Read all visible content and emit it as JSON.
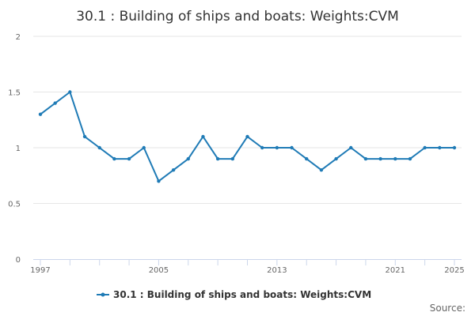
{
  "chart_data": {
    "type": "line",
    "title": "30.1 : Building of ships and boats: Weights:CVM",
    "xlabel": "",
    "ylabel": "",
    "x": [
      1997,
      1998,
      1999,
      2000,
      2001,
      2002,
      2003,
      2004,
      2005,
      2006,
      2007,
      2008,
      2009,
      2010,
      2011,
      2012,
      2013,
      2014,
      2015,
      2016,
      2017,
      2018,
      2019,
      2020,
      2021,
      2022,
      2023,
      2024,
      2025
    ],
    "series": [
      {
        "name": "30.1 : Building of ships and boats: Weights:CVM",
        "values": [
          1.3,
          1.4,
          1.5,
          1.1,
          1.0,
          0.9,
          0.9,
          1.0,
          0.7,
          0.8,
          0.9,
          1.1,
          0.9,
          0.9,
          1.1,
          1.0,
          1.0,
          1.0,
          0.9,
          0.8,
          0.9,
          1.0,
          0.9,
          0.9,
          0.9,
          0.9,
          1.0,
          1.0,
          1.0
        ],
        "color": "#1f7bb6"
      }
    ],
    "ylim": [
      0,
      2
    ],
    "yticks": [
      "0",
      "0.5",
      "1",
      "1.5",
      "2"
    ],
    "xtick_labels": [
      "1997",
      "2005",
      "2013",
      "2021",
      "2025"
    ],
    "xtick_label_years": [
      1997,
      2005,
      2013,
      2021,
      2025
    ],
    "grid": true,
    "legend_position": "bottom-center",
    "gridline_color": "#e6e6e6",
    "axis_color": "#ccd6eb"
  },
  "source_text": "Source:"
}
